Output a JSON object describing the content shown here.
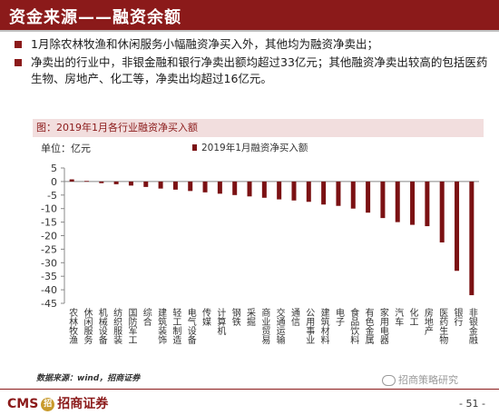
{
  "header": {
    "title": "资金来源——融资余额"
  },
  "bullets": [
    "1月除农林牧渔和休闲服务小幅融资净买入外，其他均为融资净卖出；",
    "净卖出的行业中，非银金融和银行净卖出额均超过33亿元；其他融资净卖出较高的包括医药生物、房地产、化工等，净卖出均超过16亿元。"
  ],
  "chart_title": "图：2019年1月各行业融资净买入额",
  "source": "数据来源：wind，招商证券",
  "footer": {
    "logo_cms": "CMS",
    "logo_badge": "招",
    "logo_cn": "招商证券",
    "watermark": "招商策略研究",
    "page": "- 51 -"
  },
  "colors": {
    "brand": "#8b1a1a",
    "bar": "#7b1113"
  },
  "chart_data": {
    "type": "bar",
    "title": "图：2019年1月各行业融资净买入额",
    "ylabel": "单位：亿元",
    "ylim": [
      -45,
      5
    ],
    "yticks": [
      5,
      0,
      -5,
      -10,
      -15,
      -20,
      -25,
      -30,
      -35,
      -40,
      -45
    ],
    "grid": false,
    "legend_position": "top",
    "categories": [
      "农林牧渔",
      "休闲服务",
      "机械设备",
      "纺织服装",
      "国防军工",
      "综合",
      "建筑装饰",
      "轻工制造",
      "电气设备",
      "传媒",
      "计算机",
      "钢铁",
      "采掘",
      "商业贸易",
      "交通运输",
      "通信",
      "公用事业",
      "建筑材料",
      "电子",
      "食品饮料",
      "有色金属",
      "家用电器",
      "汽车",
      "化工",
      "房地产",
      "医药生物",
      "银行",
      "非银金融"
    ],
    "series": [
      {
        "name": "2019年1月融资净买入额",
        "values": [
          0.8,
          0.2,
          -0.6,
          -1.0,
          -1.5,
          -2.0,
          -2.6,
          -3.0,
          -3.5,
          -4.0,
          -4.5,
          -5.0,
          -5.5,
          -6.0,
          -6.6,
          -7.0,
          -7.5,
          -8.5,
          -9.0,
          -10.0,
          -11.5,
          -13.5,
          -15.0,
          -16.0,
          -16.5,
          -22.5,
          -33.0,
          -42.0
        ]
      }
    ]
  }
}
